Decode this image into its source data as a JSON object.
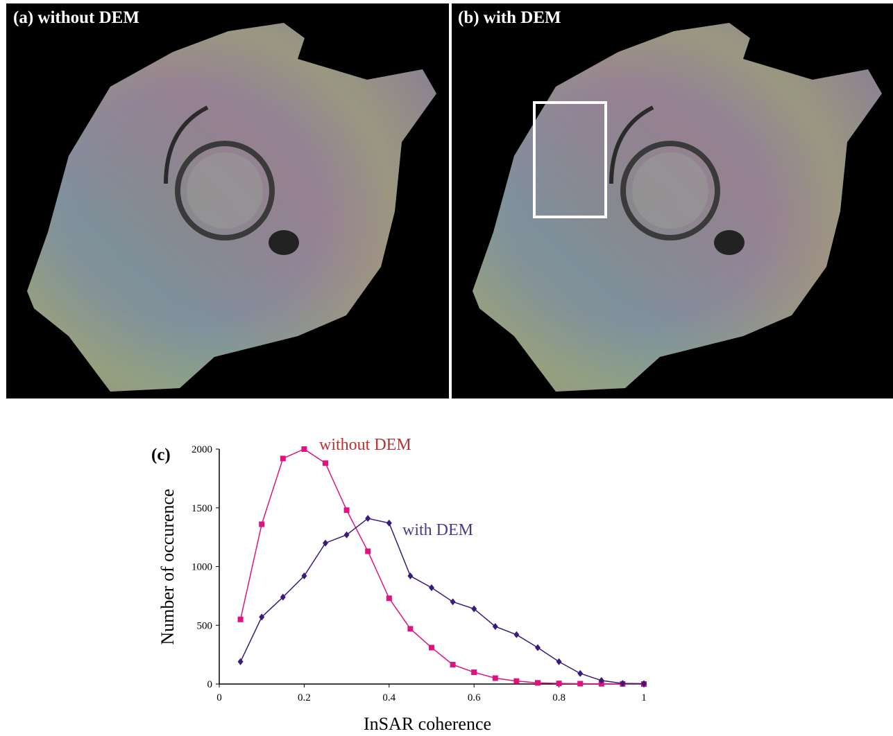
{
  "panel_labels": {
    "a": "(a) without DEM",
    "b": "(b) with DEM"
  },
  "chart_data": {
    "type": "line",
    "panel_label": "(c)",
    "x_label": "InSAR coherence",
    "y_label": "Number of occurence",
    "x": [
      0.05,
      0.1,
      0.15,
      0.2,
      0.25,
      0.3,
      0.35,
      0.4,
      0.45,
      0.5,
      0.55,
      0.6,
      0.65,
      0.7,
      0.75,
      0.8,
      0.85,
      0.9,
      0.95,
      1
    ],
    "series": [
      {
        "name": "without DEM",
        "color": "#e0127f",
        "label_color": "#b83232",
        "marker": "square",
        "values": [
          550,
          1360,
          1920,
          2000,
          1880,
          1480,
          1130,
          730,
          470,
          310,
          165,
          100,
          50,
          25,
          10,
          5,
          3,
          2,
          1,
          0
        ]
      },
      {
        "name": "with DEM",
        "color": "#3a1a7a",
        "label_color": "#4a3a8a",
        "marker": "diamond",
        "values": [
          190,
          570,
          740,
          920,
          1200,
          1270,
          1410,
          1370,
          920,
          820,
          700,
          640,
          490,
          420,
          310,
          190,
          90,
          30,
          5,
          3
        ]
      }
    ],
    "xlim": [
      0,
      1
    ],
    "xticks": [
      0,
      0.2,
      0.4,
      0.6,
      0.8,
      1
    ],
    "ylim": [
      0,
      2000
    ],
    "yticks": [
      0,
      500,
      1000,
      1500,
      2000
    ],
    "grid": false
  }
}
